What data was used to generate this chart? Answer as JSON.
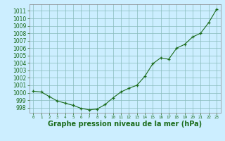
{
  "x": [
    0,
    1,
    2,
    3,
    4,
    5,
    6,
    7,
    8,
    9,
    10,
    11,
    12,
    13,
    14,
    15,
    16,
    17,
    18,
    19,
    20,
    21,
    22,
    23
  ],
  "y": [
    1000.2,
    1000.1,
    999.5,
    998.9,
    998.6,
    998.3,
    997.9,
    997.7,
    997.8,
    998.4,
    999.3,
    1000.1,
    1000.6,
    1001.0,
    1002.2,
    1003.9,
    1004.7,
    1004.5,
    1006.0,
    1006.5,
    1007.5,
    1008.0,
    1009.4,
    1011.2
  ],
  "line_color": "#1a6b1a",
  "marker_color": "#1a6b1a",
  "bg_color": "#cceeff",
  "grid_color": "#88bbbb",
  "xlabel": "Graphe pression niveau de la mer (hPa)",
  "ylabel_ticks": [
    998,
    999,
    1000,
    1001,
    1002,
    1003,
    1004,
    1005,
    1006,
    1007,
    1008,
    1009,
    1010,
    1011
  ],
  "ylim": [
    997.3,
    1011.9
  ],
  "xlim": [
    -0.5,
    23.5
  ],
  "xticks": [
    0,
    1,
    2,
    3,
    4,
    5,
    6,
    7,
    8,
    9,
    10,
    11,
    12,
    13,
    14,
    15,
    16,
    17,
    18,
    19,
    20,
    21,
    22,
    23
  ],
  "xlabel_color": "#1a6b1a",
  "xlabel_fontsize": 7,
  "ytick_fontsize": 5.5,
  "xtick_fontsize": 4.2,
  "axis_color": "#808080",
  "spine_color": "#888888"
}
